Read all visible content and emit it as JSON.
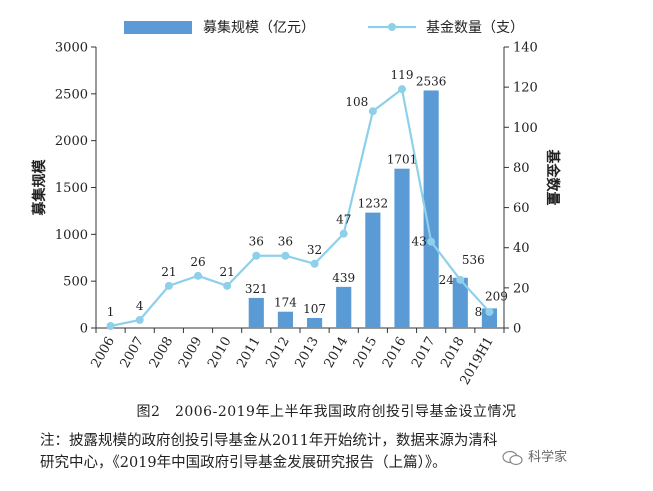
{
  "chart_data": {
    "type": "bar+line",
    "categories": [
      "2006",
      "2007",
      "2008",
      "2009",
      "2010",
      "2011",
      "2012",
      "2013",
      "2014",
      "2015",
      "2016",
      "2017",
      "2018",
      "2019H1"
    ],
    "series": [
      {
        "name": "募集规模（亿元）",
        "type": "bar",
        "axis": "left",
        "values": [
          null,
          null,
          null,
          null,
          null,
          321,
          174,
          107,
          439,
          1232,
          1701,
          2536,
          536,
          209
        ],
        "labels": [
          "",
          "",
          "",
          "",
          "",
          "321",
          "174",
          "107",
          "439",
          "1232",
          "1701",
          "2536",
          "536",
          "209"
        ]
      },
      {
        "name": "基金数量（支）",
        "type": "line",
        "axis": "right",
        "values": [
          1,
          4,
          21,
          26,
          21,
          36,
          36,
          32,
          47,
          108,
          119,
          43,
          24,
          8
        ],
        "labels": [
          "1",
          "4",
          "21",
          "26",
          "21",
          "36",
          "36",
          "32",
          "47",
          "108",
          "119",
          "43",
          "24",
          "8"
        ]
      }
    ],
    "left_axis": {
      "label": "募集规模",
      "min": 0,
      "max": 3000,
      "ticks": [
        "0",
        "500",
        "1000",
        "1500",
        "2000",
        "2500",
        "3000"
      ]
    },
    "right_axis": {
      "label": "基金数量",
      "min": 0,
      "max": 140,
      "ticks": [
        "0",
        "20",
        "40",
        "60",
        "80",
        "100",
        "120",
        "140"
      ]
    },
    "legend_position": "top",
    "grid": false,
    "colors": {
      "bar": "#5b9bd5",
      "line": "#8ed0ea",
      "axis": "#333333"
    }
  },
  "caption": "图2　2006-2019年上半年我国政府创投引导基金设立情况",
  "note": {
    "line1": "注：披露规模的政府创投引导基金从2011年开始统计，数据来源为清科",
    "line2": "研究中心，《2019年中国政府引导基金发展研究报告（上篇）》。"
  },
  "watermark": "科学家"
}
